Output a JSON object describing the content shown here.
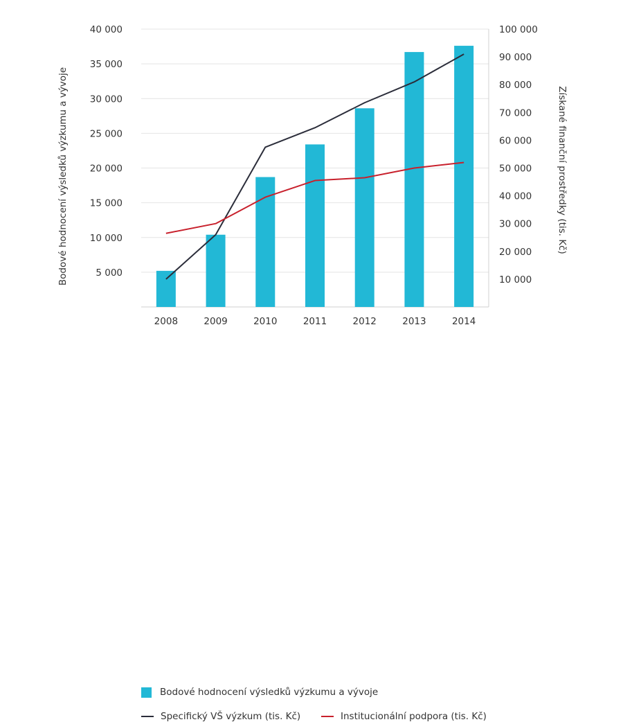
{
  "chart_data": {
    "type": "bar",
    "categories": [
      "2008",
      "2009",
      "2010",
      "2011",
      "2012",
      "2013",
      "2014"
    ],
    "series": [
      {
        "name": "Bodové hodnocení výsledků výzkumu a vývoje",
        "type": "bar",
        "axis": "left",
        "color": "#22b8d6",
        "values": [
          5200,
          10400,
          18700,
          23400,
          28600,
          36700,
          37600
        ]
      },
      {
        "name": "Specifický VŠ výzkum (tis. Kč)",
        "type": "line",
        "axis": "right",
        "color": "#2b2d3a",
        "values": [
          10000,
          26000,
          57500,
          64500,
          73500,
          81000,
          91000
        ]
      },
      {
        "name": "Institucionální podpora (tis. Kč)",
        "type": "line",
        "axis": "right",
        "color": "#c8202c",
        "values": [
          26500,
          30000,
          39500,
          45500,
          46500,
          50000,
          52000
        ]
      }
    ],
    "ylabel": "Bodové hodnocení výsledků výzkumu a vývoje",
    "y2label": "Získané finanční prostředky (tis. Kč)",
    "ylim": [
      0,
      40000
    ],
    "y2lim": [
      0,
      100000
    ],
    "yticks": [
      "5 000",
      "10 000",
      "15 000",
      "20 000",
      "25 000",
      "30 000",
      "35 000",
      "40 000"
    ],
    "yticks_values": [
      5000,
      10000,
      15000,
      20000,
      25000,
      30000,
      35000,
      40000
    ],
    "y2ticks": [
      "10 000",
      "20 000",
      "30 000",
      "40 000",
      "50 000",
      "60 000",
      "70 000",
      "80 000",
      "90 000",
      "100 000"
    ],
    "y2ticks_values": [
      10000,
      20000,
      30000,
      40000,
      50000,
      60000,
      70000,
      80000,
      90000,
      100000
    ],
    "grid": true,
    "legend_position": "bottom-center"
  }
}
